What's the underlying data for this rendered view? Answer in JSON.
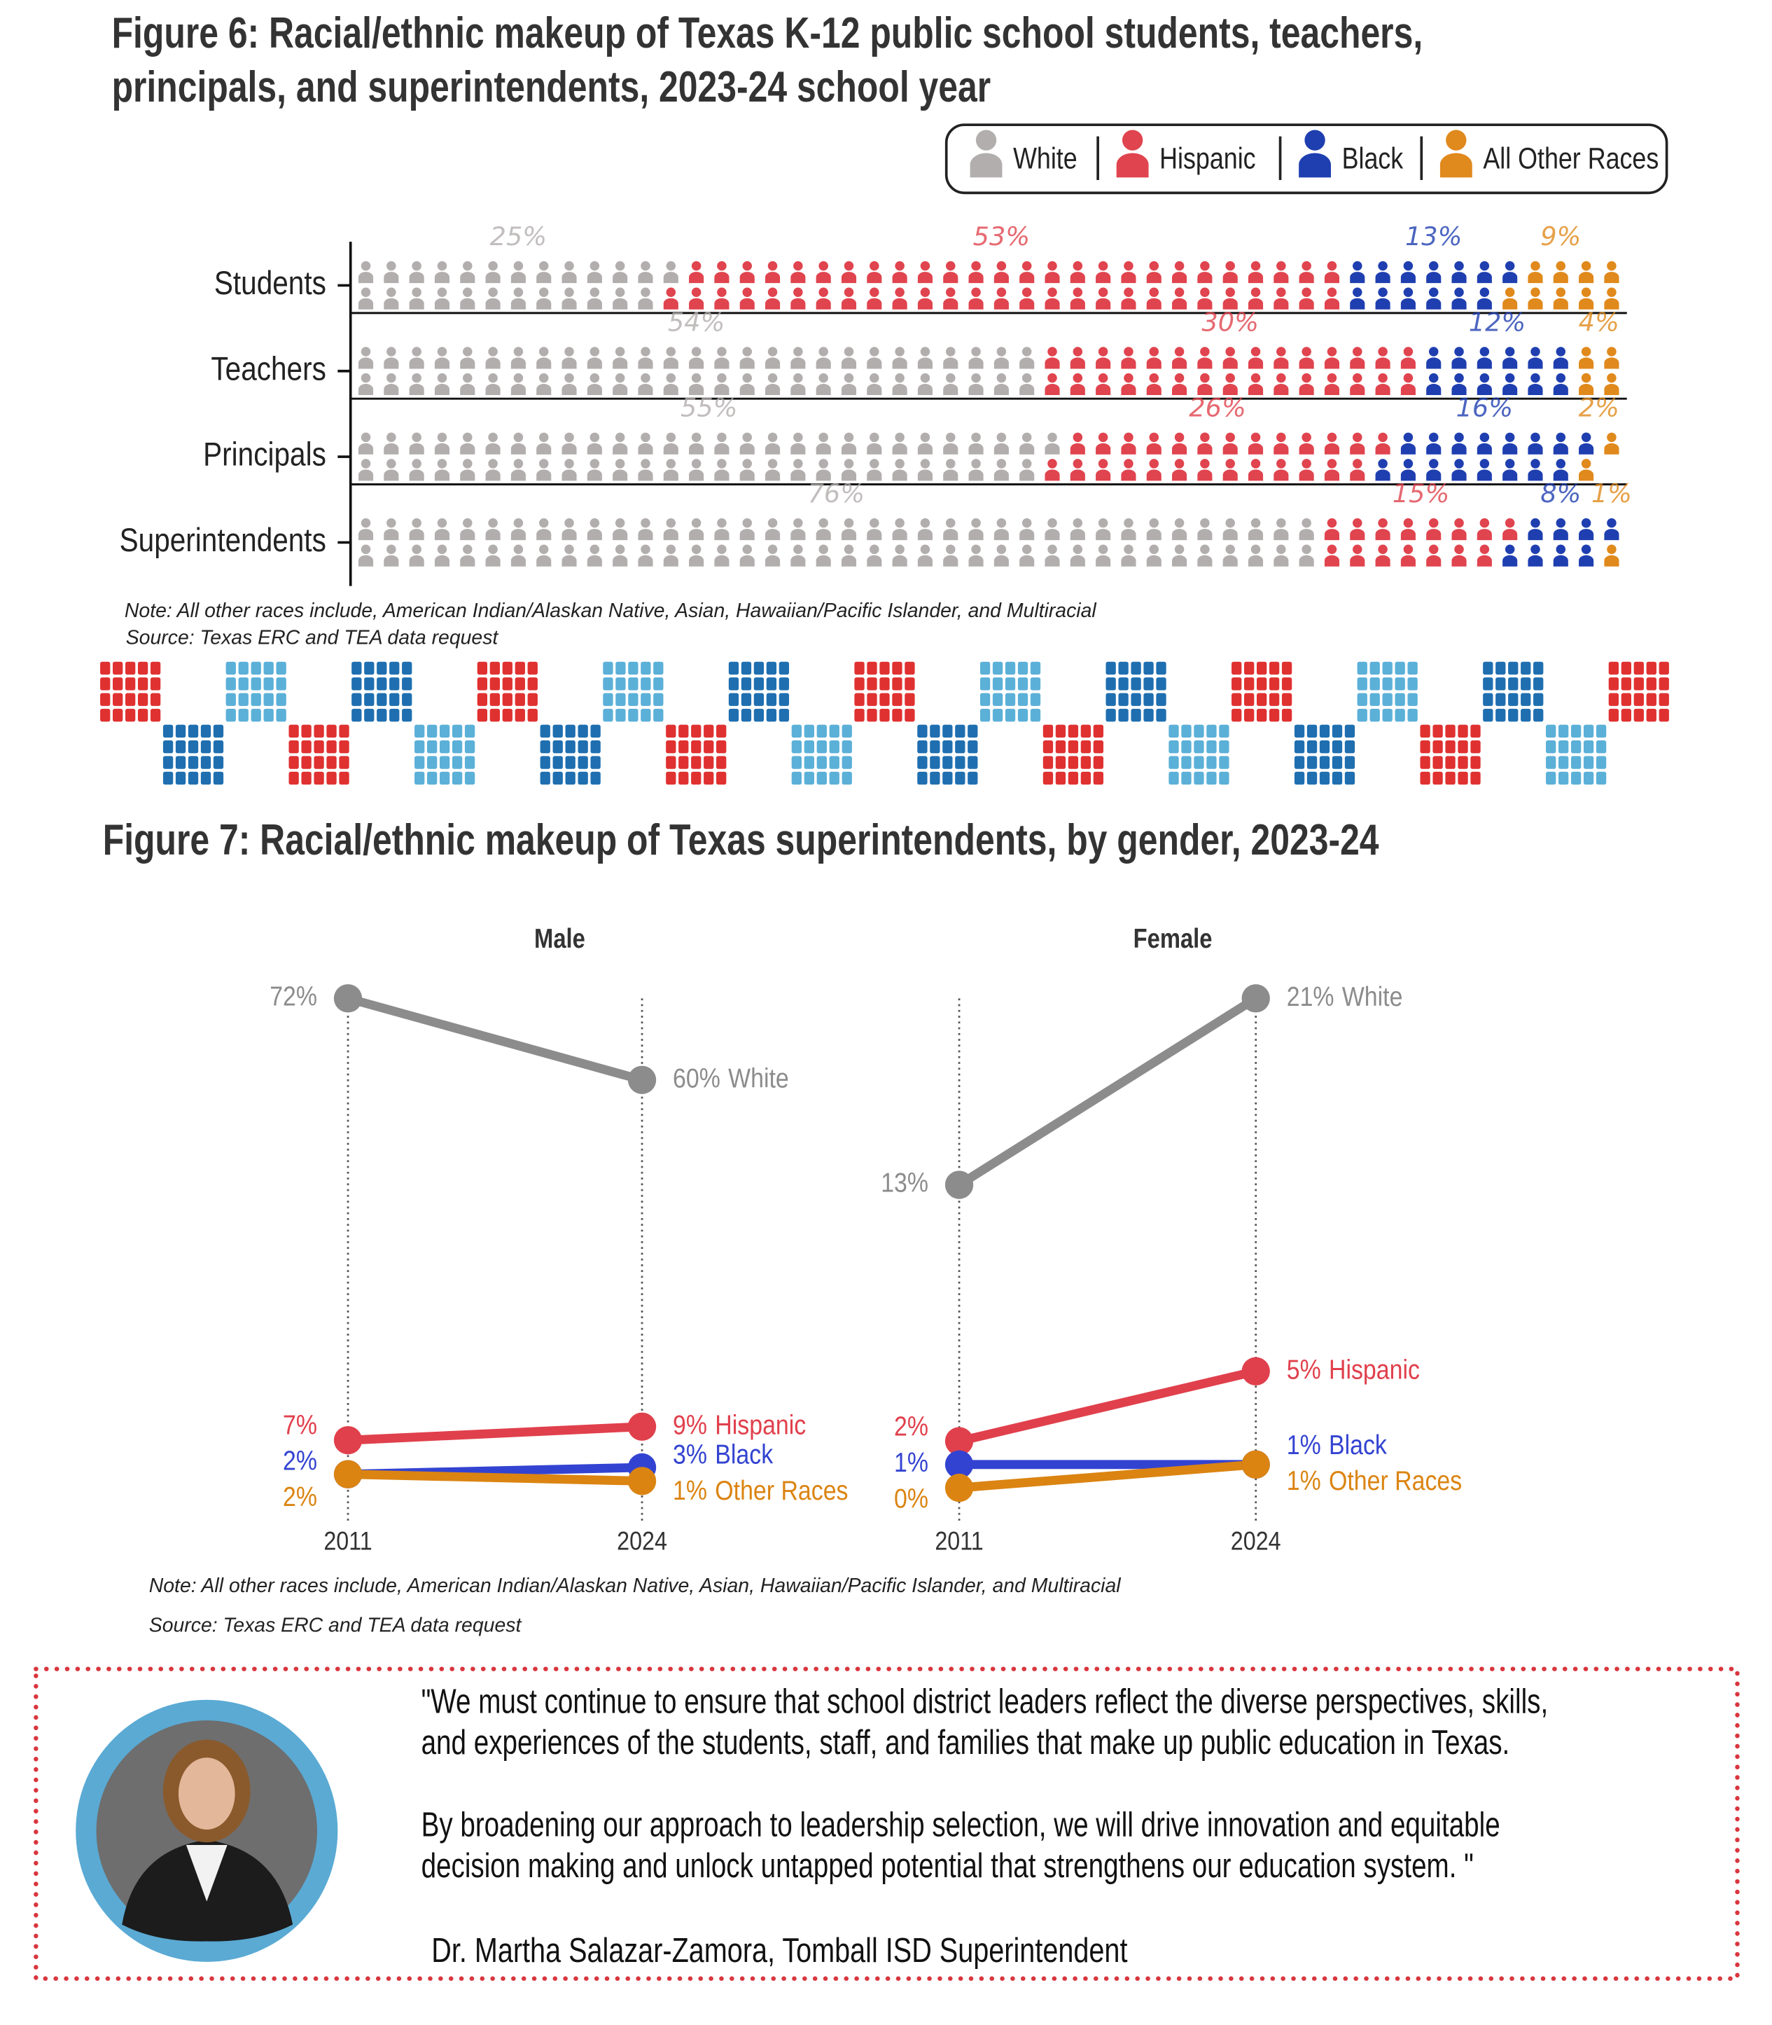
{
  "chart_data": [
    {
      "type": "pictogram",
      "title": "Figure 6: Racial/ethnic makeup of Texas K-12 public school students, teachers, principals, and superintendents, 2023-24 school year",
      "categories": [
        "Students",
        "Teachers",
        "Principals",
        "Superintendents"
      ],
      "series": [
        {
          "name": "White",
          "color": "#b3aeae",
          "values": [
            25,
            54,
            55,
            76
          ],
          "value_labels": [
            "25%",
            "54%",
            "55%",
            "76%"
          ]
        },
        {
          "name": "Hispanic",
          "color": "#e0444e",
          "values": [
            53,
            30,
            26,
            15
          ],
          "value_labels": [
            "53%",
            "30%",
            "26%",
            "15%"
          ]
        },
        {
          "name": "Black",
          "color": "#1f3fb0",
          "values": [
            13,
            12,
            16,
            8
          ],
          "value_labels": [
            "13%",
            "12%",
            "16%",
            "8%"
          ]
        },
        {
          "name": "All Other Races",
          "color": "#e0891c",
          "values": [
            9,
            4,
            2,
            1
          ],
          "value_labels": [
            "9%",
            "4%",
            "2%",
            "1%"
          ]
        }
      ],
      "legend": "top-right",
      "note": "Note: All other races include, American Indian/Alaskan Native, Asian, Hawaiian/Pacific Islander, and Multiracial",
      "source": "Source: Texas ERC and TEA data request"
    },
    {
      "type": "slope",
      "title": "Figure 7: Racial/ethnic makeup of Texas superintendents, by gender, 2023-24",
      "categories": [
        "2011",
        "2024"
      ],
      "panels": [
        {
          "title": "Male",
          "ylim": [
            0,
            72
          ],
          "series": [
            {
              "name": "White",
              "color": "#8c8c8c",
              "values": [
                72,
                60
              ],
              "value_labels": [
                "72%",
                "60%"
              ]
            },
            {
              "name": "Hispanic",
              "color": "#e0404c",
              "values": [
                7,
                9
              ],
              "value_labels": [
                "7%",
                "9%"
              ]
            },
            {
              "name": "Black",
              "color": "#3343d1",
              "values": [
                2,
                3
              ],
              "value_labels": [
                "2%",
                "3%"
              ]
            },
            {
              "name": "Other Races",
              "color": "#db8412",
              "values": [
                2,
                1
              ],
              "value_labels": [
                "2%",
                "1%"
              ]
            }
          ]
        },
        {
          "title": "Female",
          "ylim": [
            0,
            21
          ],
          "series": [
            {
              "name": "White",
              "color": "#8c8c8c",
              "values": [
                13,
                21
              ],
              "value_labels": [
                "13%",
                "21%"
              ]
            },
            {
              "name": "Hispanic",
              "color": "#e0404c",
              "values": [
                2,
                5
              ],
              "value_labels": [
                "2%",
                "5%"
              ]
            },
            {
              "name": "Black",
              "color": "#3343d1",
              "values": [
                1,
                1
              ],
              "value_labels": [
                "1%",
                "1%"
              ]
            },
            {
              "name": "Other Races",
              "color": "#db8412",
              "values": [
                0,
                1
              ],
              "value_labels": [
                "0%",
                "1%"
              ]
            }
          ]
        }
      ],
      "note": "Note: All other races include, American Indian/Alaskan Native, Asian, Hawaiian/Pacific Islander, and Multiracial",
      "source": "Source: Texas ERC and TEA data request"
    }
  ],
  "quote": {
    "paragraphs": [
      [
        "\"We must continue to ensure that school district leaders reflect the diverse perspectives, skills,",
        "and experiences of the students, staff, and families that make up public education in Texas."
      ],
      [
        "By broadening our approach to leadership selection, we will drive innovation and equitable",
        "decision making and unlock untapped potential that strengthens our education system. \""
      ]
    ],
    "attribution": "Dr. Martha Salazar-Zamora, Tomball ISD Superintendent"
  }
}
